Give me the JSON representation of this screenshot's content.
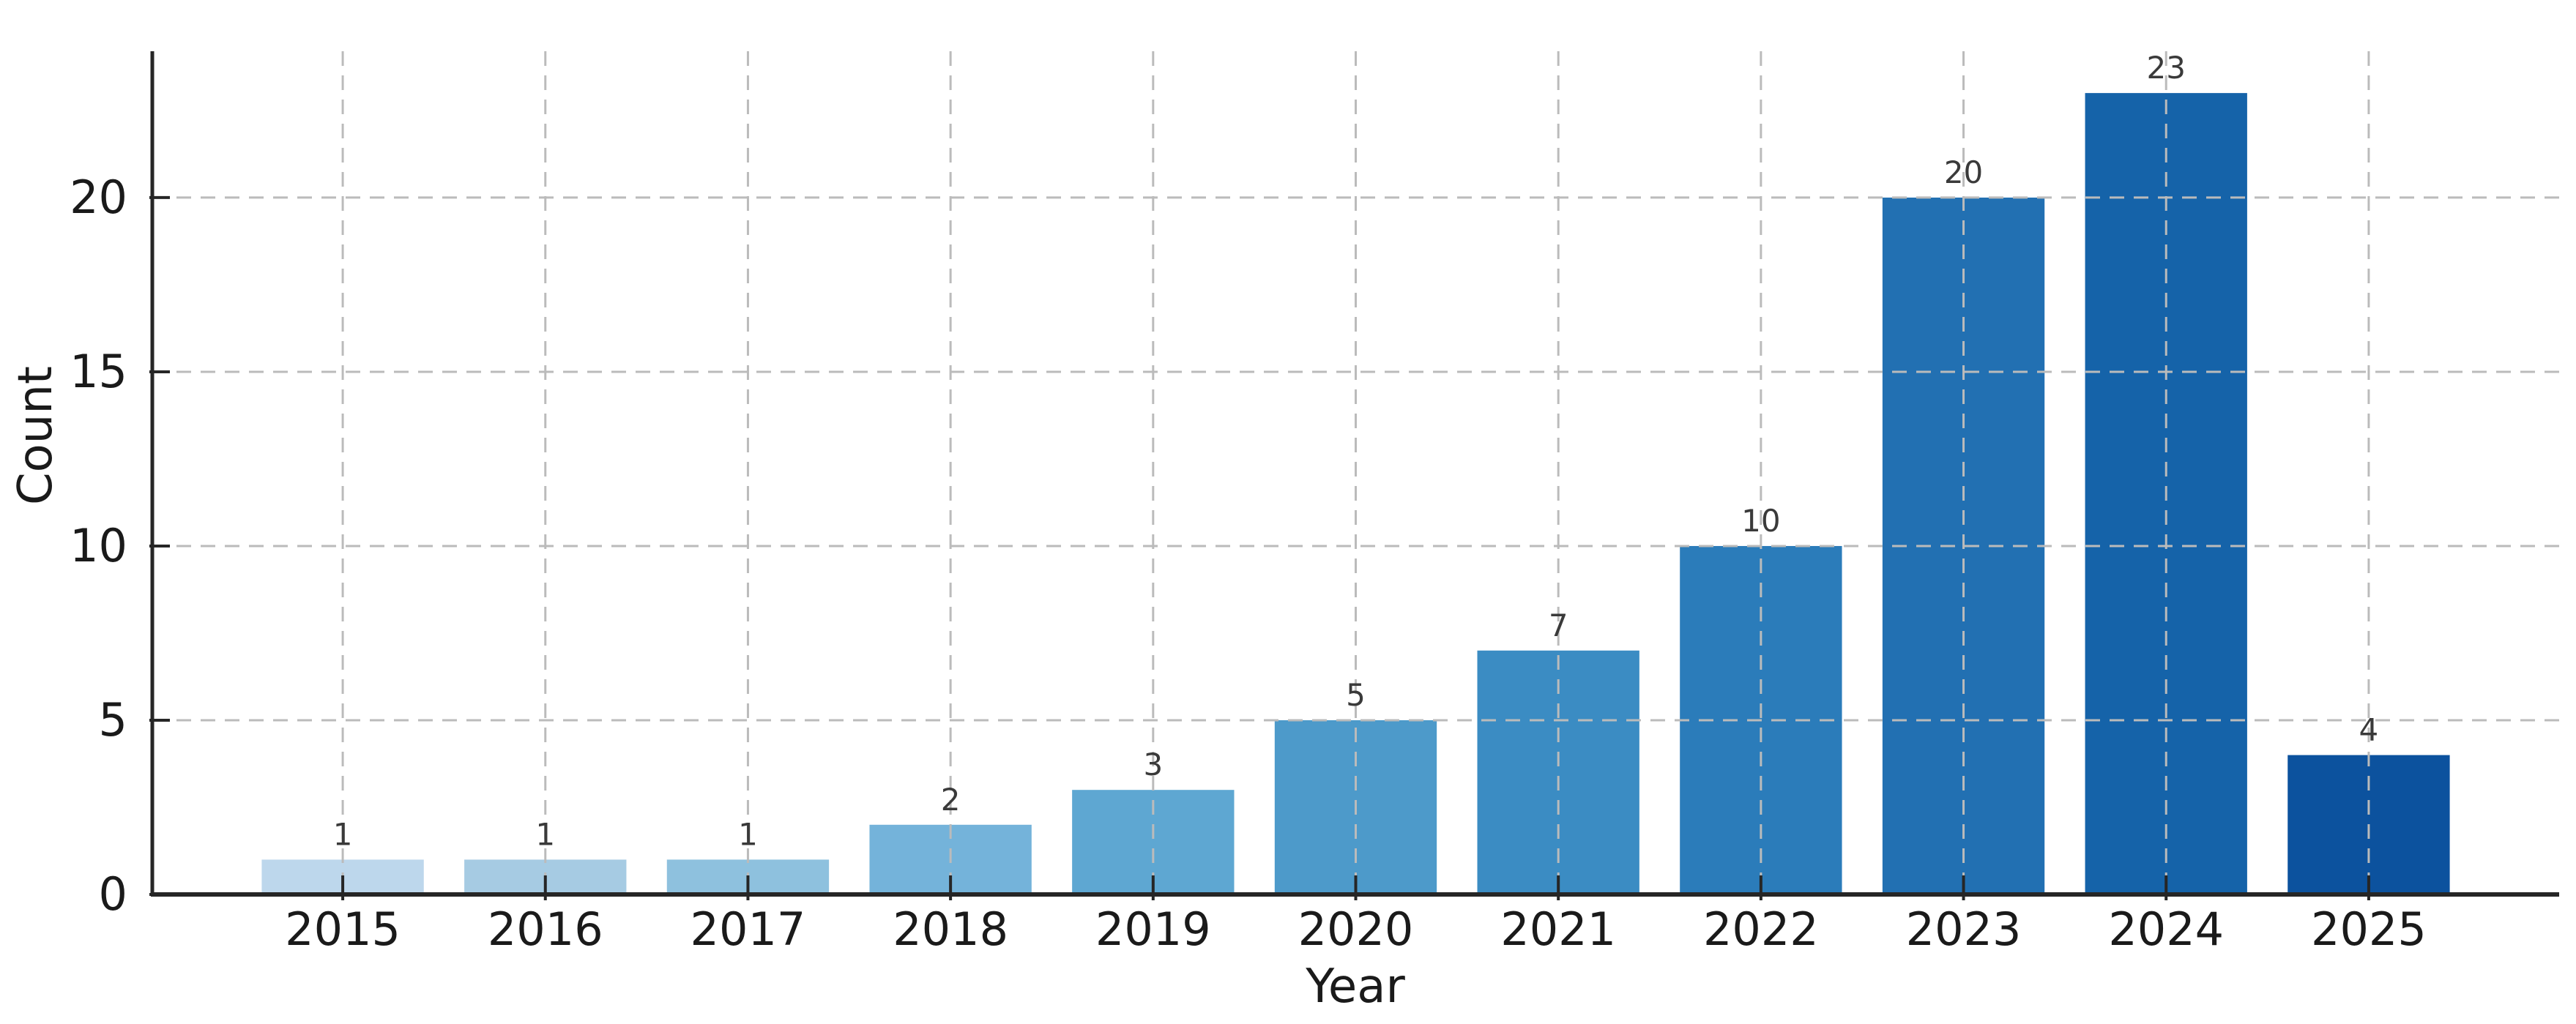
{
  "chart_data": {
    "type": "bar",
    "title": "",
    "xlabel": "Year",
    "ylabel": "Count",
    "categories": [
      "2015",
      "2016",
      "2017",
      "2018",
      "2019",
      "2020",
      "2021",
      "2022",
      "2023",
      "2024",
      "2025"
    ],
    "values": [
      1,
      1,
      1,
      2,
      3,
      5,
      7,
      10,
      20,
      23,
      4
    ],
    "bar_value_labels": [
      "1",
      "1",
      "1",
      "2",
      "3",
      "5",
      "7",
      "10",
      "20",
      "23",
      "4"
    ],
    "ylim": [
      0,
      24.2
    ],
    "yticks": [
      0,
      5,
      10,
      15,
      20
    ],
    "grid": "dashed light-gray gridlines on both axes, drawn over bars",
    "legend": "none",
    "bar_colors": [
      "#bdd7ec",
      "#a6cbe3",
      "#8ec1de",
      "#74b3da",
      "#5ea7d2",
      "#4d9aca",
      "#3b8cc3",
      "#2b7cba",
      "#2270b2",
      "#1563a9",
      "#0c529e"
    ],
    "style": {
      "background": "#ffffff",
      "spine_color": "#262626",
      "tick_label_color": "#1a1a1a",
      "value_label_color": "#3a3a3a",
      "grid_color": "#bbbbbb"
    }
  }
}
